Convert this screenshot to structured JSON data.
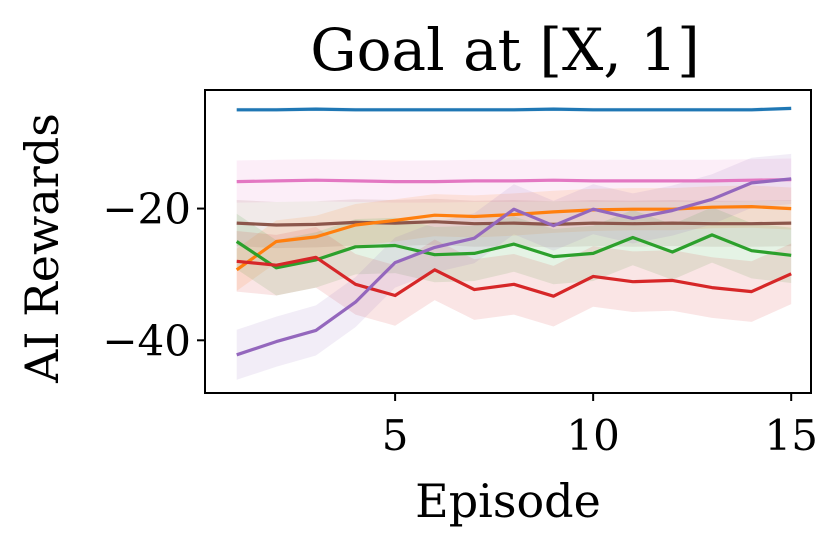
{
  "chart_data": {
    "type": "line",
    "title": "Goal at [X, 1]",
    "xlabel": "Episode",
    "ylabel": "AI Rewards",
    "xlim": [
      0.2,
      15.5
    ],
    "ylim": [
      -48,
      -2
    ],
    "xticks": [
      5,
      10,
      15
    ],
    "xtick_labels": [
      "5",
      "10",
      "15"
    ],
    "yticks": [
      -20,
      -40
    ],
    "ytick_labels": [
      "−20",
      "−40"
    ],
    "grid": false,
    "legend": "none",
    "x": [
      1,
      2,
      3,
      4,
      5,
      6,
      7,
      8,
      9,
      10,
      11,
      12,
      13,
      14,
      15
    ],
    "series": [
      {
        "color": "#1f77b4",
        "values": [
          -5.0,
          -5.0,
          -4.9,
          -5.0,
          -5.0,
          -5.0,
          -5.0,
          -5.0,
          -4.9,
          -5.0,
          -5.0,
          -5.0,
          -5.0,
          -5.0,
          -4.8
        ],
        "band": 0.3
      },
      {
        "color": "#e377c2",
        "values": [
          -15.9,
          -15.8,
          -15.7,
          -15.8,
          -15.9,
          -15.9,
          -15.8,
          -15.8,
          -15.7,
          -15.8,
          -15.8,
          -15.8,
          -15.8,
          -15.7,
          -15.6
        ],
        "band": 3.2
      },
      {
        "color": "#8c564b",
        "values": [
          -22.2,
          -22.5,
          -22.4,
          -22.1,
          -22.2,
          -22.0,
          -22.3,
          -22.2,
          -22.4,
          -22.2,
          -22.3,
          -22.2,
          -22.3,
          -22.3,
          -22.2
        ],
        "band": 3.5
      },
      {
        "color": "#ff7f0e",
        "values": [
          -29.3,
          -25.0,
          -24.3,
          -22.5,
          -21.8,
          -21.0,
          -21.2,
          -20.9,
          -20.5,
          -20.2,
          -20.1,
          -20.1,
          -19.8,
          -19.7,
          -20.0
        ],
        "band": 3.2
      },
      {
        "color": "#2ca02c",
        "values": [
          -25.0,
          -29.0,
          -27.8,
          -25.8,
          -25.6,
          -27.0,
          -26.8,
          -25.4,
          -27.3,
          -26.8,
          -24.4,
          -26.6,
          -24.0,
          -26.4,
          -27.1
        ],
        "band": 4.2
      },
      {
        "color": "#d62728",
        "values": [
          -28.0,
          -28.6,
          -27.4,
          -31.5,
          -33.2,
          -29.3,
          -32.3,
          -31.5,
          -33.3,
          -30.3,
          -31.1,
          -30.9,
          -32.0,
          -32.6,
          -29.9
        ],
        "band": 4.6
      },
      {
        "color": "#9467bd",
        "values": [
          -42.2,
          -40.2,
          -38.5,
          -34.2,
          -28.2,
          -25.9,
          -24.5,
          -20.1,
          -22.6,
          -20.1,
          -21.5,
          -20.3,
          -18.6,
          -16.1,
          -15.5
        ],
        "band": 3.8
      }
    ]
  }
}
